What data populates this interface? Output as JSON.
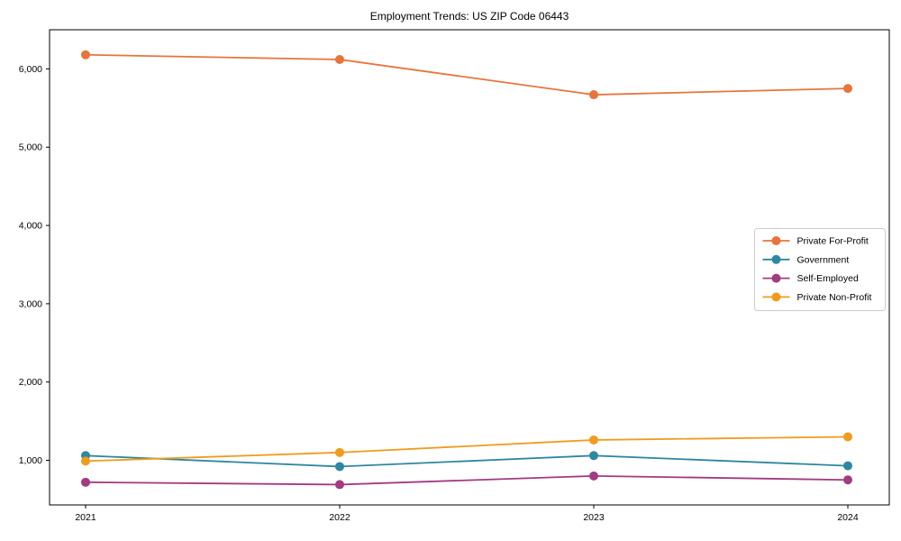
{
  "title": "Employment Trends: US ZIP Code 06443",
  "chart_data": {
    "type": "line",
    "title": "Employment Trends: US ZIP Code 06443",
    "xlabel": "",
    "ylabel": "",
    "x_labels": [
      "2021",
      "2022",
      "2023",
      "2024"
    ],
    "series": [
      {
        "name": "Private For-Profit",
        "color": "#e8743b",
        "values": [
          6180,
          6120,
          5670,
          5750
        ]
      },
      {
        "name": "Government",
        "color": "#2e87a1",
        "values": [
          1060,
          920,
          1060,
          930
        ]
      },
      {
        "name": "Self-Employed",
        "color": "#a23b80",
        "values": [
          720,
          690,
          800,
          750
        ]
      },
      {
        "name": "Private Non-Profit",
        "color": "#f09b1d",
        "values": [
          990,
          1100,
          1260,
          1300
        ]
      }
    ],
    "y_ticks": [
      1000,
      2000,
      3000,
      4000,
      5000,
      6000
    ],
    "y_tick_labels": [
      "1,000",
      "2,000",
      "3,000",
      "4,000",
      "5,000",
      "6,000"
    ],
    "ylim": [
      430,
      6500
    ],
    "grid": false,
    "legend_position": "center right",
    "legend_border_color": "#cccccc",
    "axis_color": "#000000",
    "marker": "circle"
  }
}
